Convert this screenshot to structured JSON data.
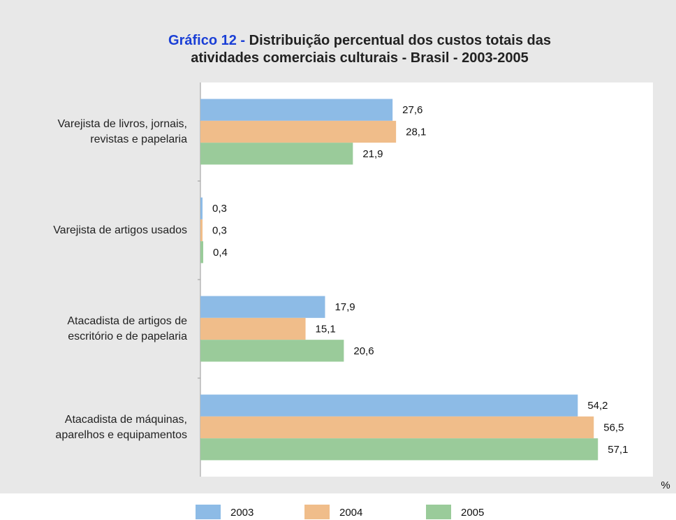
{
  "chart_data": {
    "type": "bar",
    "orientation": "horizontal",
    "title_prefix": "Gráfico 12 -",
    "title": "Distribuição percentual dos custos totais das atividades comerciais culturais - Brasil - 2003-2005",
    "categories": [
      "Varejista de livros, jornais, revistas e papelaria",
      "Varejista de artigos usados",
      "Atacadista de artigos de escritório e de papelaria",
      "Atacadista de máquinas, aparelhos e equipamentos"
    ],
    "series": [
      {
        "name": "2003",
        "color": "#8dbbe6",
        "values": [
          27.6,
          0.3,
          17.9,
          54.2
        ],
        "value_labels": [
          "27,6",
          "0,3",
          "17,9",
          "54,2"
        ]
      },
      {
        "name": "2004",
        "color": "#f0bd8a",
        "values": [
          28.1,
          0.3,
          15.1,
          56.5
        ],
        "value_labels": [
          "28,1",
          "0,3",
          "15,1",
          "56,5"
        ]
      },
      {
        "name": "2005",
        "color": "#9acb9a",
        "values": [
          21.9,
          0.4,
          20.6,
          57.1
        ],
        "value_labels": [
          "21,9",
          "0,4",
          "20,6",
          "57,1"
        ]
      }
    ],
    "x_label": "%",
    "xlim": [
      0,
      65
    ],
    "legend": "bottom"
  }
}
